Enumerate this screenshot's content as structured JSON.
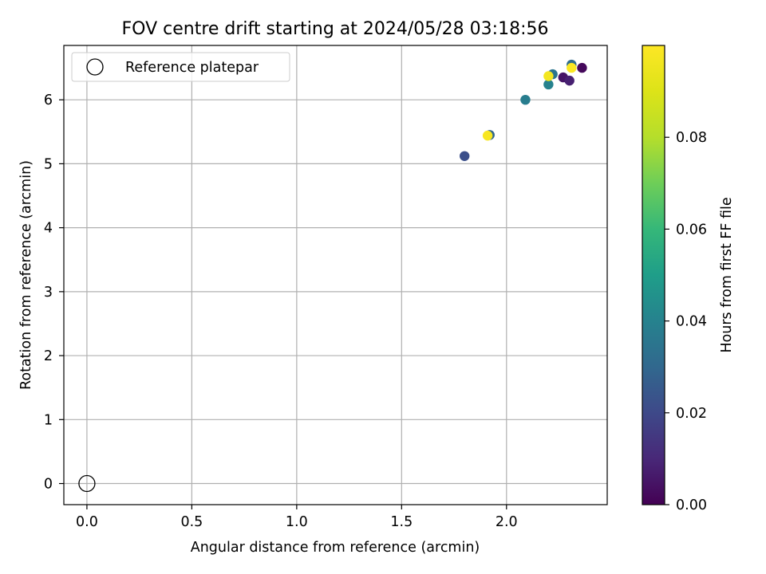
{
  "chart_data": {
    "type": "scatter",
    "title": "FOV centre drift starting at 2024/05/28 03:18:56",
    "xlabel": "Angular distance from reference (arcmin)",
    "ylabel": "Rotation from reference (arcmin)",
    "xlim": [
      -0.11,
      2.48
    ],
    "ylim": [
      -0.33,
      6.85
    ],
    "xticks": [
      0.0,
      0.5,
      1.0,
      1.5,
      2.0
    ],
    "xtick_labels": [
      "0.0",
      "0.5",
      "1.0",
      "1.5",
      "2.0"
    ],
    "yticks": [
      0,
      1,
      2,
      3,
      4,
      5,
      6
    ],
    "ytick_labels": [
      "0",
      "1",
      "2",
      "3",
      "4",
      "5",
      "6"
    ],
    "grid": true,
    "legend": {
      "placement": "upper-left",
      "entries": [
        {
          "label": "Reference platepar",
          "marker": "open-circle"
        }
      ]
    },
    "reference_point": {
      "x": 0.0,
      "y": 0.0
    },
    "colormap": "viridis",
    "colorbar": {
      "label": "Hours from first FF file",
      "range": [
        0.0,
        0.1
      ],
      "ticks": [
        0.0,
        0.02,
        0.04,
        0.06,
        0.08
      ],
      "tick_labels": [
        "0.00",
        "0.02",
        "0.04",
        "0.06",
        "0.08"
      ]
    },
    "points": [
      {
        "x": 2.36,
        "y": 6.5,
        "c": 0.002
      },
      {
        "x": 2.27,
        "y": 6.35,
        "c": 0.005
      },
      {
        "x": 2.3,
        "y": 6.3,
        "c": 0.008
      },
      {
        "x": 2.31,
        "y": 6.55,
        "c": 0.032
      },
      {
        "x": 2.22,
        "y": 6.4,
        "c": 0.035
      },
      {
        "x": 2.2,
        "y": 6.24,
        "c": 0.04
      },
      {
        "x": 2.09,
        "y": 6.0,
        "c": 0.038
      },
      {
        "x": 1.92,
        "y": 5.45,
        "c": 0.03
      },
      {
        "x": 1.8,
        "y": 5.12,
        "c": 0.022
      },
      {
        "x": 1.91,
        "y": 5.44,
        "c": 0.098
      },
      {
        "x": 2.2,
        "y": 6.37,
        "c": 0.097
      },
      {
        "x": 2.31,
        "y": 6.5,
        "c": 0.099
      }
    ]
  }
}
